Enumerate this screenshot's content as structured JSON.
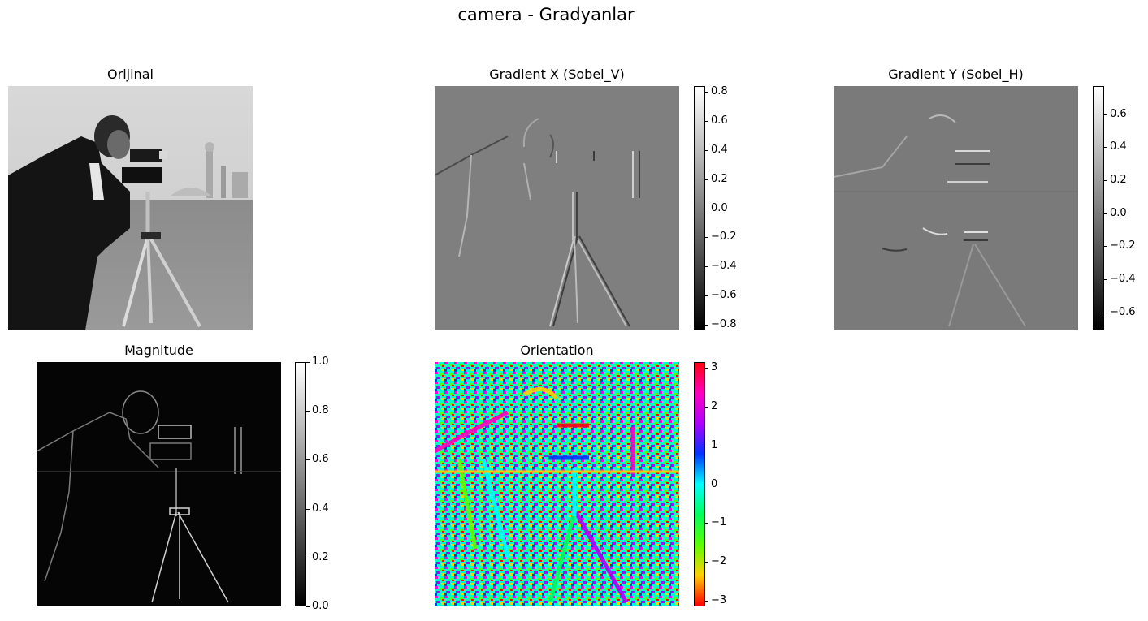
{
  "figure": {
    "suptitle": "camera - Gradyanlar"
  },
  "colors": {
    "background": "#ffffff",
    "gray_colormap": [
      "#000000",
      "#ffffff"
    ],
    "hsv_colormap": [
      "#ff0000",
      "#ffd000",
      "#5cff00",
      "#00ff5c",
      "#00ffff",
      "#0034ff",
      "#b000ff",
      "#ff00c0",
      "#ff0010"
    ]
  },
  "panels": [
    {
      "id": "original",
      "title": "Orijinal",
      "cmap": "gray",
      "image": "cameraman photograph"
    },
    {
      "id": "gradx",
      "title": "Gradient X (Sobel_V)",
      "cmap": "gray",
      "image": "vertical edge response"
    },
    {
      "id": "grady",
      "title": "Gradient Y (Sobel_H)",
      "cmap": "gray",
      "image": "horizontal edge response"
    },
    {
      "id": "magnitude",
      "title": "Magnitude",
      "cmap": "gray",
      "image": "gradient magnitude"
    },
    {
      "id": "orientation",
      "title": "Orientation",
      "cmap": "hsv",
      "image": "gradient orientation"
    }
  ],
  "chart_data": [
    {
      "type": "heatmap",
      "title": "Orijinal",
      "colormap": "gray",
      "colorbar": null
    },
    {
      "type": "heatmap",
      "title": "Gradient X (Sobel_V)",
      "colormap": "gray",
      "colorbar": {
        "range": [
          -0.84,
          0.84
        ],
        "ticks": [
          "0.8",
          "0.6",
          "0.4",
          "0.2",
          "0.0",
          "−0.2",
          "−0.4",
          "−0.6",
          "−0.8"
        ],
        "tick_values": [
          0.8,
          0.6,
          0.4,
          0.2,
          0.0,
          -0.2,
          -0.4,
          -0.6,
          -0.8
        ]
      }
    },
    {
      "type": "heatmap",
      "title": "Gradient Y (Sobel_H)",
      "colormap": "gray",
      "colorbar": {
        "range": [
          -0.71,
          0.77
        ],
        "ticks": [
          "0.6",
          "0.4",
          "0.2",
          "0.0",
          "−0.2",
          "−0.4",
          "−0.6"
        ],
        "tick_values": [
          0.6,
          0.4,
          0.2,
          0.0,
          -0.2,
          -0.4,
          -0.6
        ]
      }
    },
    {
      "type": "heatmap",
      "title": "Magnitude",
      "colormap": "gray",
      "colorbar": {
        "range": [
          0.0,
          1.0
        ],
        "ticks": [
          "1.0",
          "0.8",
          "0.6",
          "0.4",
          "0.2",
          "0.0"
        ],
        "tick_values": [
          1.0,
          0.8,
          0.6,
          0.4,
          0.2,
          0.0
        ]
      }
    },
    {
      "type": "heatmap",
      "title": "Orientation",
      "colormap": "hsv",
      "colorbar": {
        "range": [
          -3.1416,
          3.1416
        ],
        "ticks": [
          "3",
          "2",
          "1",
          "0",
          "−1",
          "−2",
          "−3"
        ],
        "tick_values": [
          3,
          2,
          1,
          0,
          -1,
          -2,
          -3
        ]
      }
    }
  ]
}
